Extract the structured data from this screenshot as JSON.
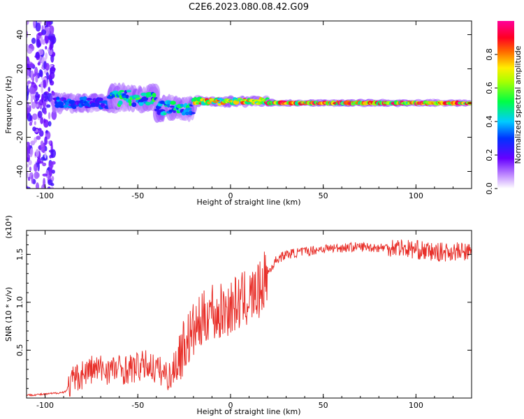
{
  "title": "C2E6.2023.080.08.42.G09",
  "colors": {
    "snr_line": "#e8302a",
    "axis": "#000000",
    "background": "#ffffff"
  },
  "chart_data": [
    {
      "type": "heatmap",
      "title": "C2E6.2023.080.08.42.G09",
      "xlabel": "Height of straight line (km)",
      "ylabel": "Frequency (Hz)",
      "xlim": [
        -110,
        130
      ],
      "ylim": [
        -50,
        48
      ],
      "x_ticks": [
        "-100",
        "-50",
        "0",
        "50",
        "100"
      ],
      "y_ticks": [
        "40",
        "20",
        "0",
        "-20",
        "-40"
      ],
      "colorbar": {
        "label": "Normalized spectral amplitude",
        "range": [
          0.0,
          1.0
        ],
        "ticks": [
          "0.0",
          "0.2",
          "0.4",
          "0.6",
          "0.8"
        ],
        "colormap": "rainbow (white-violet-blue-cyan-green-yellow-red-magenta)"
      },
      "features": [
        {
          "x_range": [
            -110,
            -95
          ],
          "freq_range": [
            -50,
            48
          ],
          "amplitude": 0.2,
          "pattern": "scattered noise"
        },
        {
          "x_range": [
            -95,
            -60
          ],
          "freq_center": 0,
          "freq_spread": 6,
          "amplitude": 0.35
        },
        {
          "x_range": [
            -65,
            -40
          ],
          "freq_center": 3,
          "freq_spread": 9,
          "amplitude": 0.55
        },
        {
          "x_range": [
            -40,
            -20
          ],
          "freq_center": -3,
          "freq_spread": 8,
          "amplitude": 0.5
        },
        {
          "x_range": [
            -20,
            20
          ],
          "freq_center": 1,
          "freq_spread": 3,
          "amplitude": 0.85
        },
        {
          "x_range": [
            20,
            130
          ],
          "freq_center": 0,
          "freq_spread": 2,
          "amplitude": 0.95
        }
      ]
    },
    {
      "type": "line",
      "xlabel": "Height of straight line (km)",
      "ylabel": "SNR (10 * v/v)",
      "y_multiplier": "(x10⁴)",
      "xlim": [
        -110,
        130
      ],
      "ylim": [
        0,
        1.75
      ],
      "x_ticks": [
        "-100",
        "-50",
        "0",
        "50",
        "100"
      ],
      "y_ticks": [
        "1.5",
        "1.0",
        "0.5"
      ],
      "series": [
        {
          "color": "#e8302a",
          "x": [
            -110,
            -100,
            -90,
            -87,
            -85,
            -80,
            -75,
            -70,
            -65,
            -60,
            -55,
            -50,
            -45,
            -40,
            -35,
            -32,
            -30,
            -25,
            -20,
            -15,
            -12,
            -10,
            -8,
            -5,
            0,
            5,
            10,
            15,
            20,
            25,
            30,
            40,
            50,
            60,
            70,
            80,
            90,
            95,
            100,
            110,
            120,
            130
          ],
          "y": [
            0.03,
            0.04,
            0.06,
            0.1,
            0.18,
            0.25,
            0.3,
            0.3,
            0.3,
            0.3,
            0.3,
            0.32,
            0.35,
            0.3,
            0.25,
            0.22,
            0.35,
            0.55,
            0.7,
            0.8,
            0.9,
            0.95,
            0.85,
            0.9,
            0.95,
            1.0,
            1.05,
            1.1,
            1.3,
            1.45,
            1.5,
            1.53,
            1.56,
            1.57,
            1.58,
            1.57,
            1.58,
            1.56,
            1.55,
            1.52,
            1.53,
            1.52
          ]
        }
      ]
    }
  ]
}
